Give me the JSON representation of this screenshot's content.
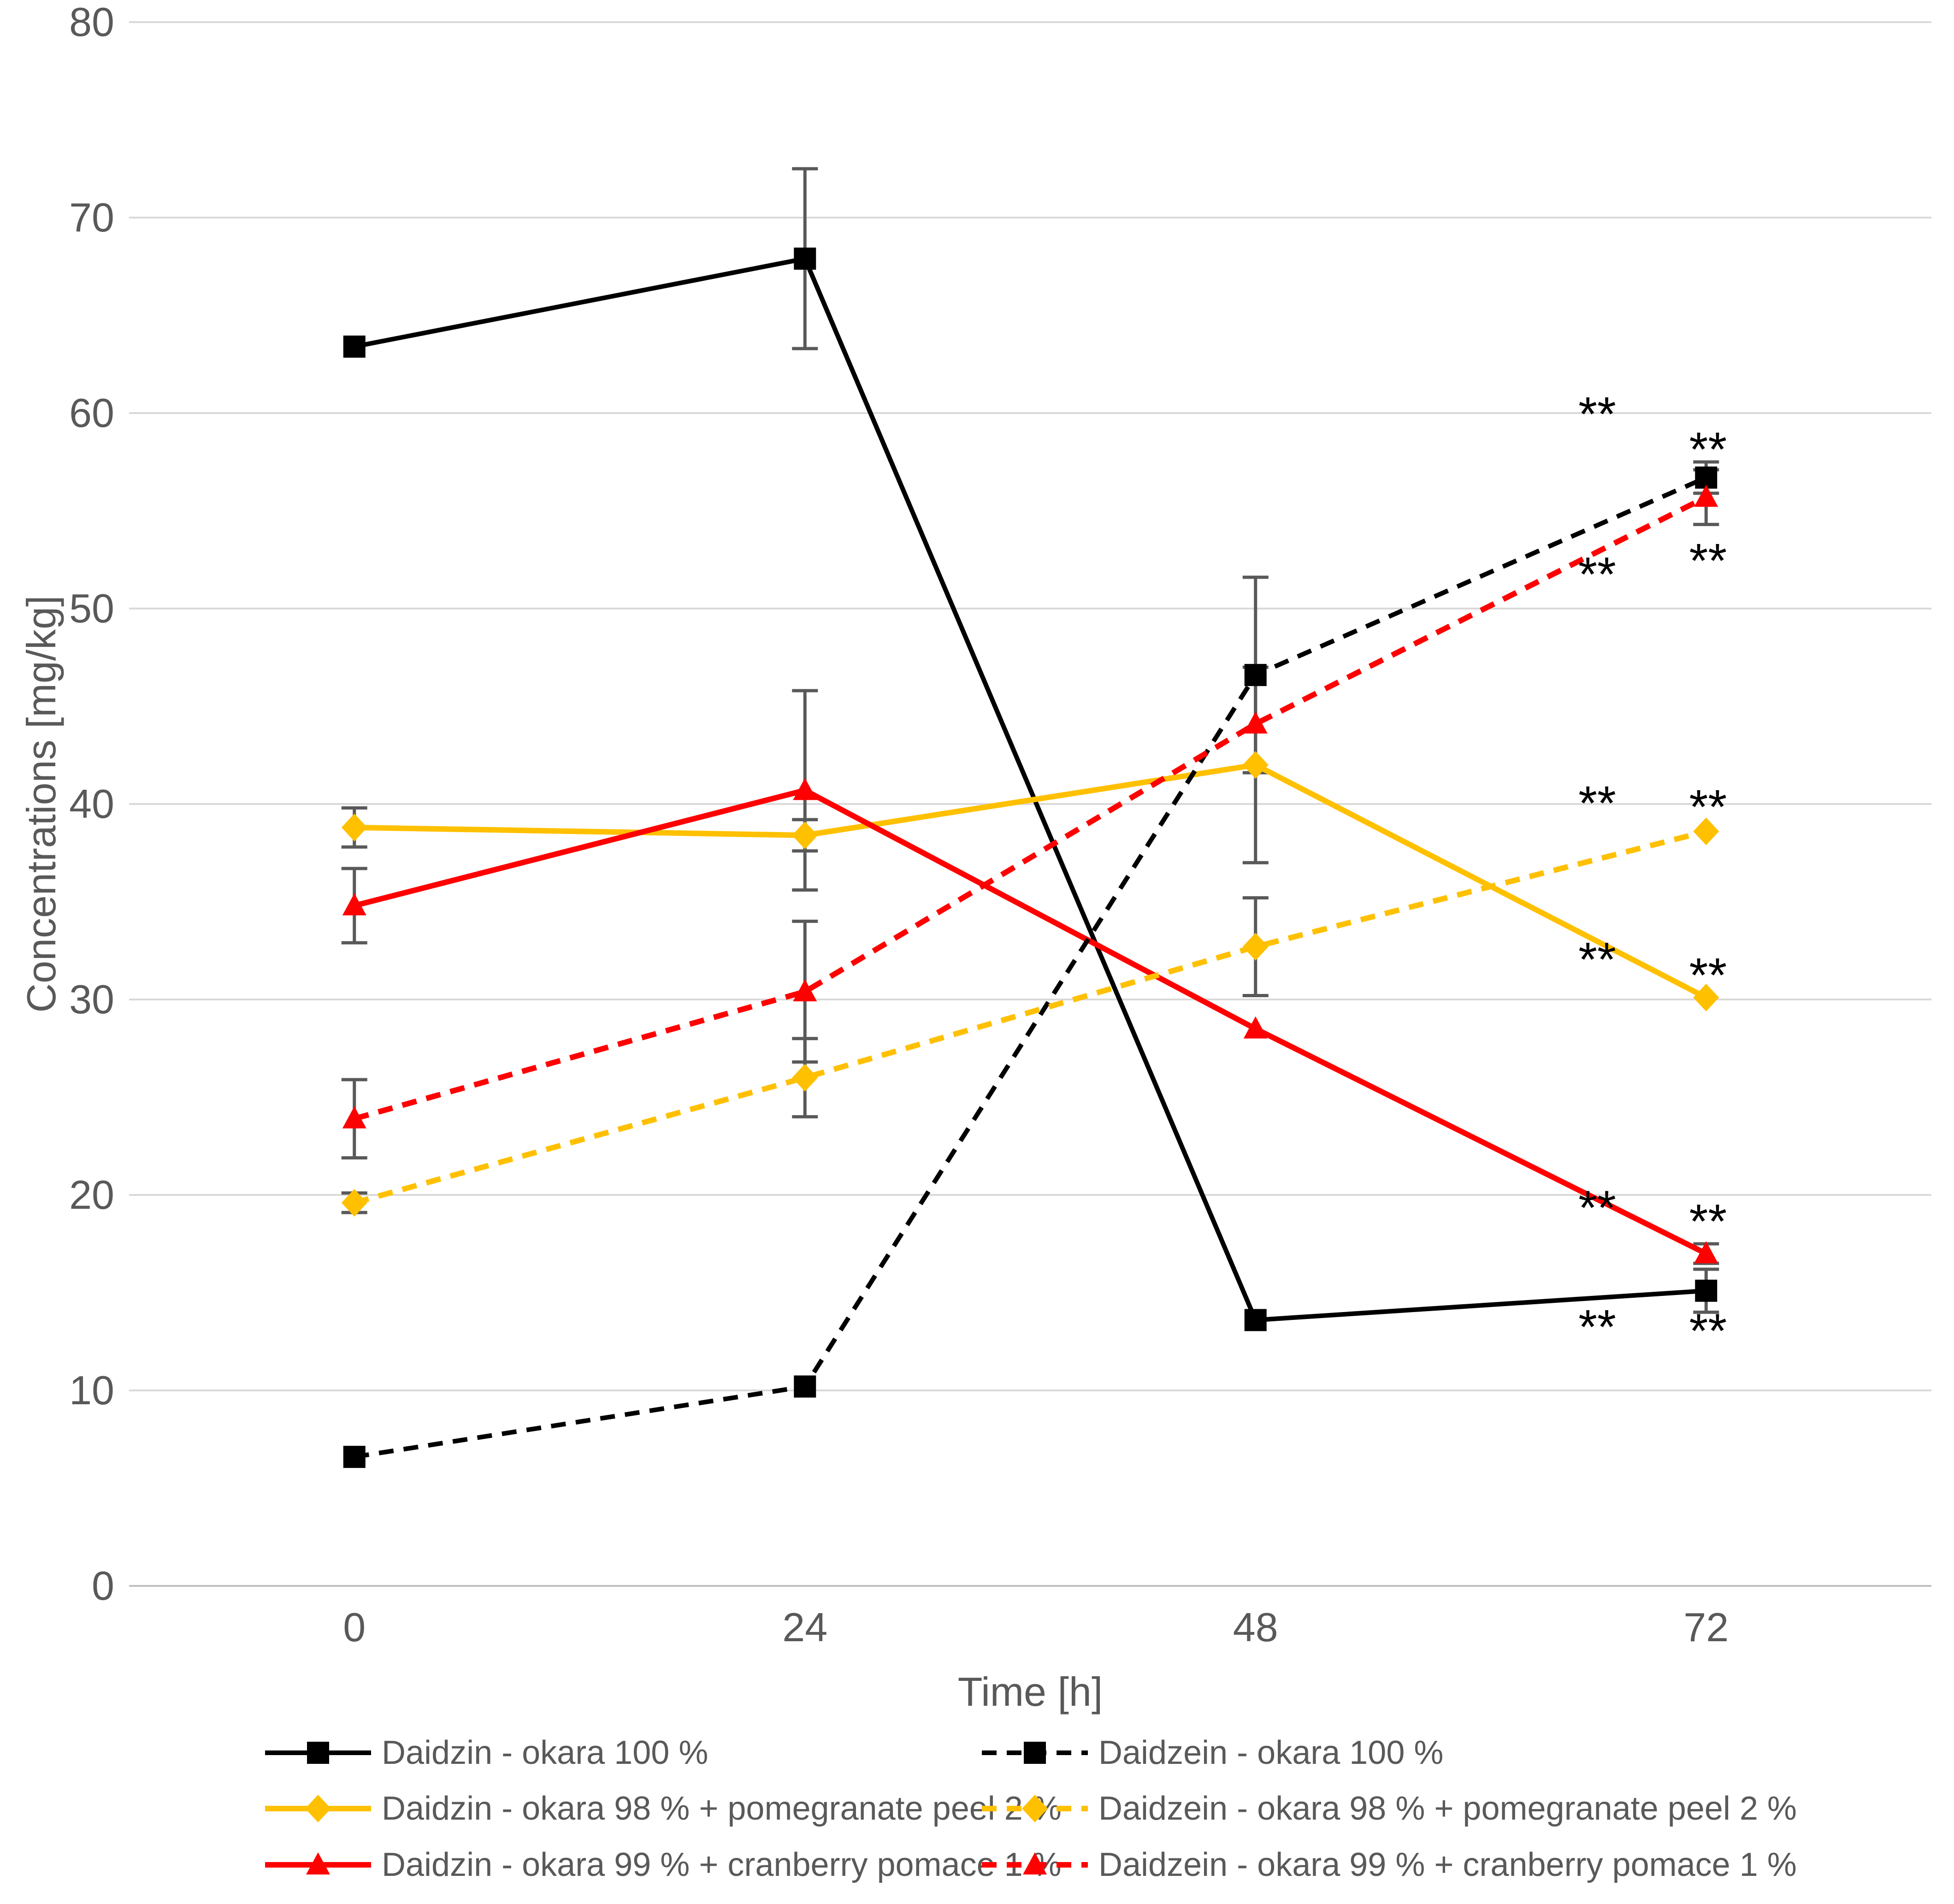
{
  "chart_data": {
    "type": "line",
    "title": "",
    "xlabel": "Time [h]",
    "ylabel": "Concentrations [mg/kg]",
    "categories": [
      0,
      24,
      48,
      72
    ],
    "x_tick_labels": [
      "0",
      "24",
      "48",
      "72"
    ],
    "ylim": [
      0,
      80
    ],
    "ytick_step": 10,
    "ytick_labels": [
      "0",
      "10",
      "20",
      "30",
      "40",
      "50",
      "60",
      "70",
      "80"
    ],
    "grid": true,
    "legend_position": "bottom",
    "series": [
      {
        "name": "Daidzin - okara 100 %",
        "color": "#000000",
        "dash": "solid",
        "marker": "square",
        "values": [
          63.4,
          67.9,
          13.6,
          15.1
        ],
        "errors": [
          0,
          4.6,
          0,
          1.1
        ]
      },
      {
        "name": "Daidzin - okara 98 % + pomegranate peel 2 %",
        "color": "#FFC000",
        "dash": "solid",
        "marker": "diamond",
        "values": [
          38.8,
          38.4,
          42.0,
          30.1
        ],
        "errors": [
          1.0,
          0.8,
          5.0,
          0
        ]
      },
      {
        "name": "Daidzin - okara 99 % + cranberry pomace 1 %",
        "color": "#FF0000",
        "dash": "solid",
        "marker": "triangle",
        "values": [
          34.8,
          40.7,
          28.5,
          17.0
        ],
        "errors": [
          1.9,
          5.1,
          0,
          0.5
        ]
      },
      {
        "name": "Daidzein - okara 100 %",
        "color": "#000000",
        "dash": "dashed",
        "marker": "square",
        "values": [
          6.6,
          10.2,
          46.6,
          56.7
        ],
        "errors": [
          0,
          0,
          5.0,
          0.8
        ]
      },
      {
        "name": "Daidzein - okara 98 % + pomegranate peel 2 %",
        "color": "#FFC000",
        "dash": "dashed",
        "marker": "diamond",
        "values": [
          19.6,
          26.0,
          32.7,
          38.6
        ],
        "errors": [
          0.5,
          2.0,
          2.5,
          0
        ]
      },
      {
        "name": "Daidzein - okara 99 % + cranberry pomace 1 %",
        "color": "#FF0000",
        "dash": "dashed",
        "marker": "triangle",
        "values": [
          23.9,
          30.4,
          44.1,
          55.7
        ],
        "errors": [
          2.0,
          3.6,
          0,
          1.4
        ]
      }
    ],
    "annotations": [
      {
        "label": "**",
        "x": 66.2,
        "y": 60.0
      },
      {
        "label": "**",
        "x": 72.1,
        "y": 58.2
      },
      {
        "label": "**",
        "x": 66.2,
        "y": 51.8
      },
      {
        "label": "**",
        "x": 72.1,
        "y": 52.5
      },
      {
        "label": "**",
        "x": 66.2,
        "y": 40.1
      },
      {
        "label": "**",
        "x": 72.1,
        "y": 39.9
      },
      {
        "label": "**",
        "x": 66.2,
        "y": 32.1
      },
      {
        "label": "**",
        "x": 72.1,
        "y": 31.3
      },
      {
        "label": "**",
        "x": 66.2,
        "y": 19.4
      },
      {
        "label": "**",
        "x": 72.1,
        "y": 18.7
      },
      {
        "label": "**",
        "x": 66.2,
        "y": 13.3
      },
      {
        "label": "**",
        "x": 72.1,
        "y": 13.1
      }
    ],
    "legend_columns": [
      [
        0,
        1,
        2
      ],
      [
        3,
        4,
        5
      ]
    ]
  },
  "colors": {
    "gridline": "#D9D9D9",
    "axis_line": "#BFBFBF",
    "tick_text": "#595959",
    "error_bar": "#595959",
    "annotation": "#000000",
    "background": "#FFFFFF"
  }
}
